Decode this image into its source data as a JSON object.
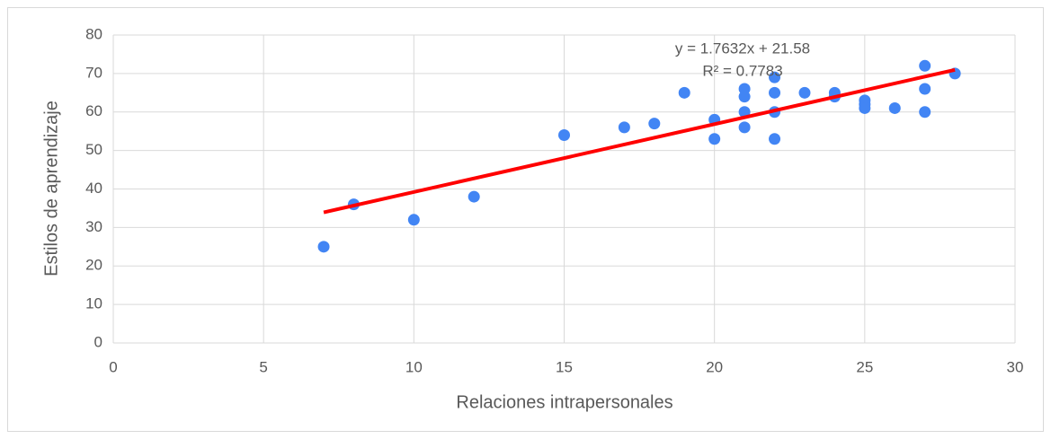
{
  "chart_data": {
    "type": "scatter",
    "x_label": "Relaciones intrapersonales",
    "y_label": "Estilos de aprendizaje",
    "series": [
      {
        "name": "Estilos de aprendizaje",
        "color": "#4285f4",
        "x": [
          7,
          8,
          10,
          12,
          15,
          17,
          18,
          19,
          20,
          20,
          21,
          21,
          21,
          21,
          22,
          22,
          22,
          22,
          23,
          24,
          24,
          25,
          25,
          25,
          26,
          27,
          27,
          27,
          28
        ],
        "values": [
          25,
          36,
          32,
          38,
          54,
          56,
          57,
          65,
          58,
          53,
          66,
          64,
          60,
          56,
          69,
          65,
          60,
          53,
          65,
          65,
          64,
          63,
          62,
          61,
          61,
          72,
          66,
          60,
          70
        ]
      }
    ],
    "trendline": {
      "slope": 1.7632,
      "intercept": 21.58,
      "xlim": [
        7,
        28
      ],
      "color": "#ff0000",
      "equation": "y = 1.7632x + 21.58",
      "r2": "R² = 0.7783"
    },
    "xlim": [
      0,
      30
    ],
    "xticks": [
      0,
      5,
      10,
      15,
      20,
      25,
      30
    ],
    "ylim": [
      0,
      80
    ],
    "yticks": [
      0,
      10,
      20,
      30,
      40,
      50,
      60,
      70,
      80
    ],
    "grid": true
  }
}
